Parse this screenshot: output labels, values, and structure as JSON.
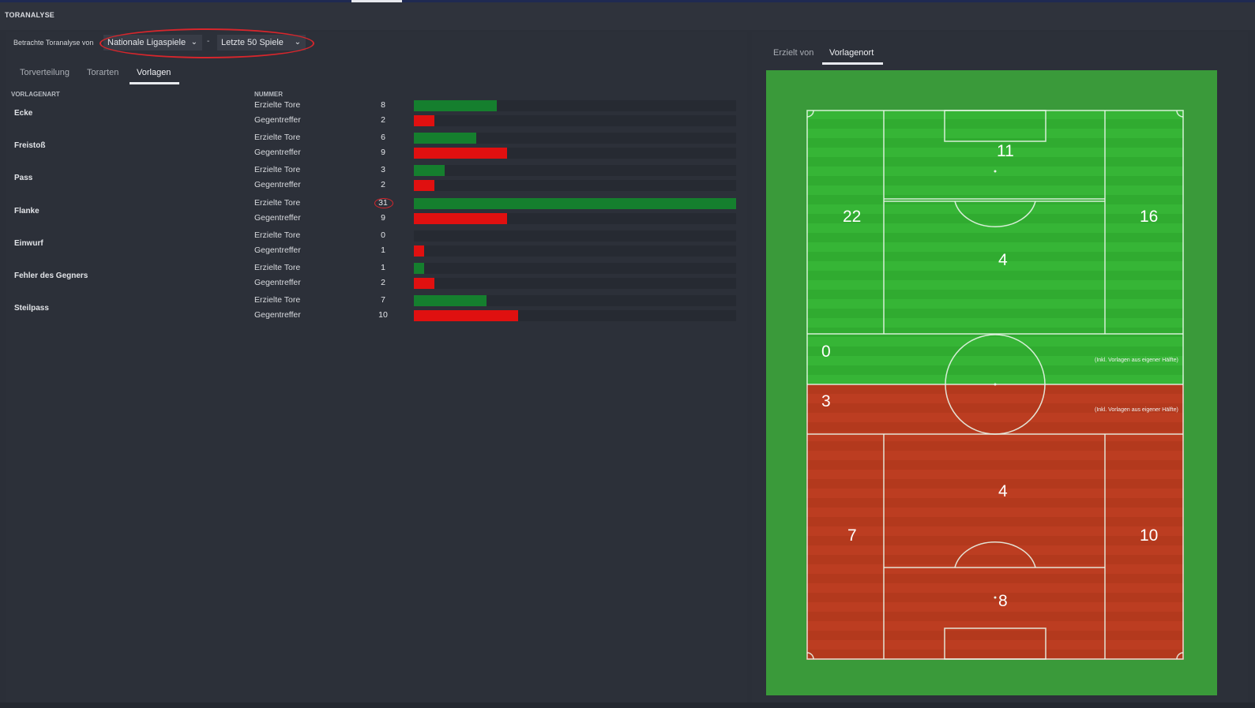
{
  "header": {
    "title": "TORANALYSE"
  },
  "filter": {
    "label": "Betrachte Toranalyse von",
    "competition": "Nationale Ligaspiele",
    "separator": "-",
    "period": "Letzte 50 Spiele"
  },
  "left_tabs": [
    {
      "label": "Torverteilung",
      "active": false
    },
    {
      "label": "Torarten",
      "active": false
    },
    {
      "label": "Vorlagen",
      "active": true
    }
  ],
  "table": {
    "col_type": "VORLAGENART",
    "col_number": "NUMMER",
    "max_value": 31,
    "rows": [
      {
        "category": "Ecke",
        "scored_label": "Erzielte Tore",
        "scored": 8,
        "conceded_label": "Gegentreffer",
        "conceded": 2
      },
      {
        "category": "Freistoß",
        "scored_label": "Erzielte Tore",
        "scored": 6,
        "conceded_label": "Gegentreffer",
        "conceded": 9
      },
      {
        "category": "Pass",
        "scored_label": "Erzielte Tore",
        "scored": 3,
        "conceded_label": "Gegentreffer",
        "conceded": 2
      },
      {
        "category": "Flanke",
        "scored_label": "Erzielte Tore",
        "scored": 31,
        "conceded_label": "Gegentreffer",
        "conceded": 9
      },
      {
        "category": "Einwurf",
        "scored_label": "Erzielte Tore",
        "scored": 0,
        "conceded_label": "Gegentreffer",
        "conceded": 1
      },
      {
        "category": "Fehler des Gegners",
        "scored_label": "Erzielte Tore",
        "scored": 1,
        "conceded_label": "Gegentreffer",
        "conceded": 2
      },
      {
        "category": "Steilpass",
        "scored_label": "Erzielte Tore",
        "scored": 7,
        "conceded_label": "Gegentreffer",
        "conceded": 10
      }
    ]
  },
  "right_tabs": [
    {
      "label": "Erzielt von",
      "active": false
    },
    {
      "label": "Vorlagenort",
      "active": true
    }
  ],
  "pitch": {
    "attack": {
      "box_center": "11",
      "left_wing": "22",
      "right_wing": "16",
      "center_mid": "4",
      "own_half_band": "0",
      "note": "(Inkl. Vorlagen aus eigener Hälfte)"
    },
    "defense": {
      "own_half_band": "3",
      "note": "(Inkl. Vorlagen aus eigener Hälfte)",
      "center_mid": "4",
      "left_wing": "7",
      "right_wing": "10",
      "box_center": "8"
    }
  },
  "colors": {
    "scored": "#157f2e",
    "conceded": "#e01010",
    "pitch_green": "#33b233",
    "pitch_red": "#b83a1f",
    "annotation": "#d7262c"
  }
}
